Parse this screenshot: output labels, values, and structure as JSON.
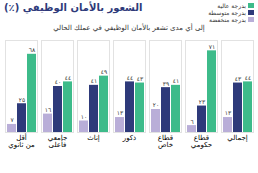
{
  "chart_data": {
    "type": "bar",
    "title": "الشعور بالأمان الوظيفي (٪)",
    "subtitle": "إلى أي مدى تشعر بالأمان الوظيفي في عملك الحالي",
    "categories": [
      "أقل من ثانوي",
      "جامعي فأعلى",
      "إناث",
      "ذكور",
      "قطاع خاص",
      "قطاع حكومي",
      "إجمالي"
    ],
    "series": [
      {
        "name": "بدرجة منخفضة",
        "color": "#b9aed8",
        "values": [
          7,
          16,
          10,
          13,
          20,
          6,
          13
        ],
        "value_labels": [
          "٧",
          "١٦",
          "١٠",
          "١٣",
          "٢٠",
          "٦",
          "١٣"
        ]
      },
      {
        "name": "بدرجة متوسطة",
        "color": "#2e3a7a",
        "values": [
          25,
          40,
          41,
          44,
          39,
          23,
          43
        ],
        "value_labels": [
          "٢٥",
          "٤٠",
          "٤١",
          "٤٤",
          "٣٩",
          "٢٣",
          "٤٣"
        ]
      },
      {
        "name": "بدرجة عالية",
        "color": "#3dbb8a",
        "values": [
          68,
          44,
          49,
          43,
          41,
          71,
          44
        ],
        "value_labels": [
          "٦٨",
          "٤٤",
          "٤٩",
          "٤٣",
          "٤١",
          "٧١",
          "٤٤"
        ]
      }
    ],
    "ylim": [
      0,
      80
    ],
    "yticks": [],
    "data_labels": true,
    "tick_labels": "x",
    "legend": "top-left"
  }
}
